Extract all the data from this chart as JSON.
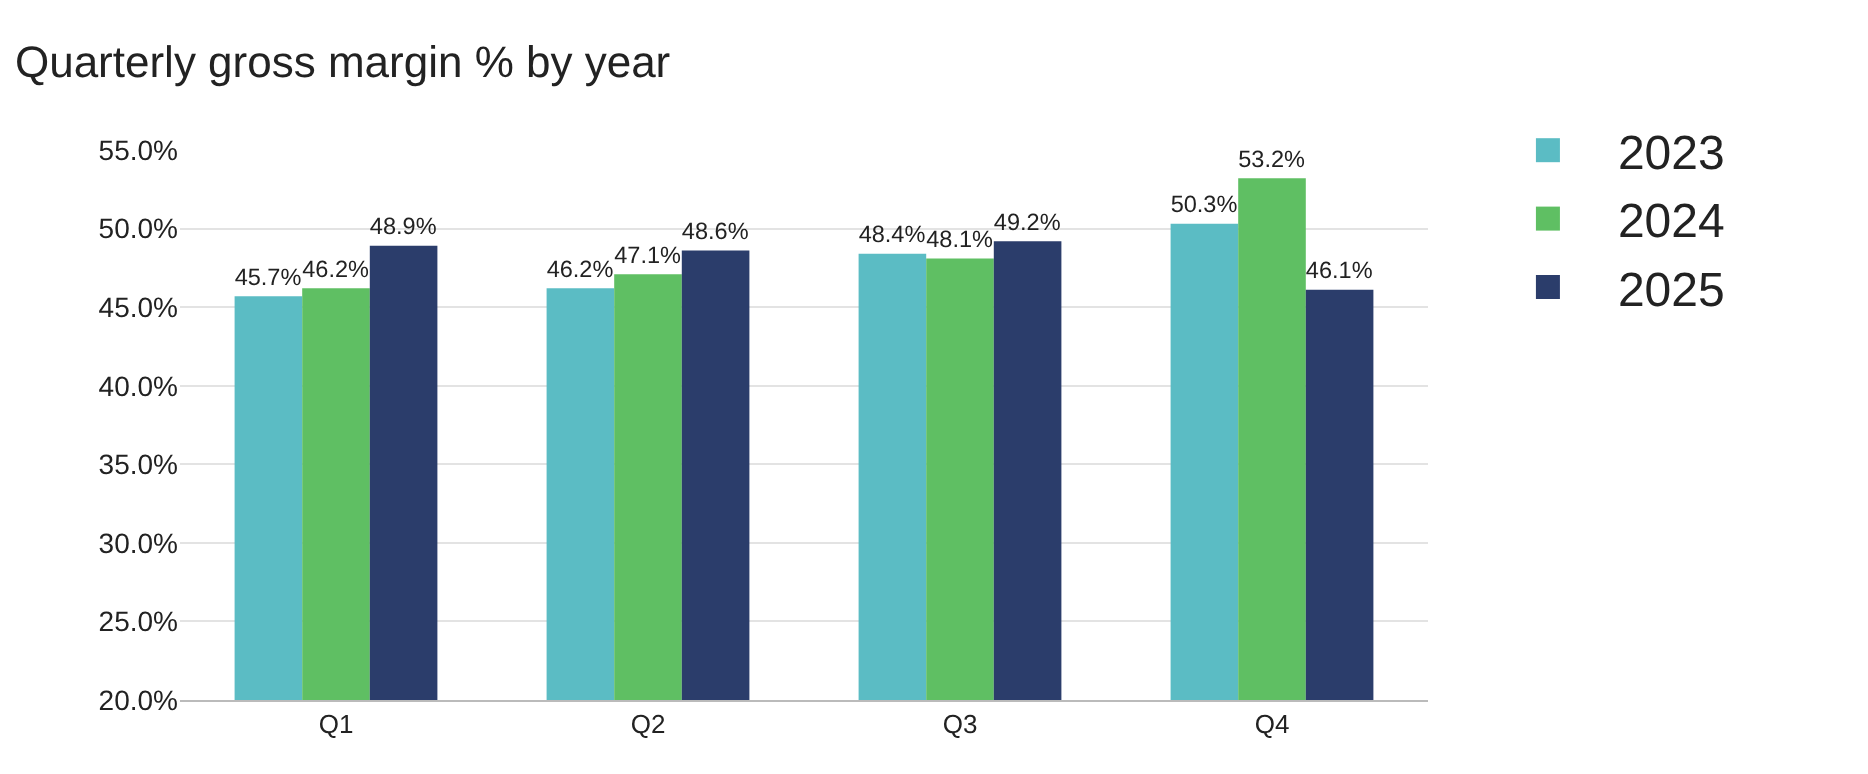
{
  "chart_data": {
    "type": "bar",
    "title": "Quarterly gross margin % by year",
    "categories": [
      "Q1",
      "Q2",
      "Q3",
      "Q4"
    ],
    "series": [
      {
        "name": "2023",
        "color": "#5bbcc4",
        "values": [
          45.7,
          46.2,
          48.4,
          50.3
        ],
        "value_labels": [
          "45.7%",
          "46.2%",
          "48.4%",
          "50.3%"
        ]
      },
      {
        "name": "2024",
        "color": "#5fbf63",
        "values": [
          46.2,
          47.1,
          48.1,
          53.2
        ],
        "value_labels": [
          "46.2%",
          "47.1%",
          "48.1%",
          "53.2%"
        ]
      },
      {
        "name": "2025",
        "color": "#2b3d6b",
        "values": [
          48.9,
          48.6,
          49.2,
          46.1
        ],
        "value_labels": [
          "48.9%",
          "48.6%",
          "49.2%",
          "46.1%"
        ]
      }
    ],
    "ylim": [
      20,
      55
    ],
    "yticks": [
      {
        "value": 20,
        "label": "20.0%"
      },
      {
        "value": 25,
        "label": "25.0%"
      },
      {
        "value": 30,
        "label": "30.0%"
      },
      {
        "value": 35,
        "label": "35.0%"
      },
      {
        "value": 40,
        "label": "40.0%"
      },
      {
        "value": 45,
        "label": "45.0%"
      },
      {
        "value": 50,
        "label": "50.0%"
      },
      {
        "value": 55,
        "label": "55.0%"
      }
    ],
    "grid": "y",
    "legend": "right"
  }
}
